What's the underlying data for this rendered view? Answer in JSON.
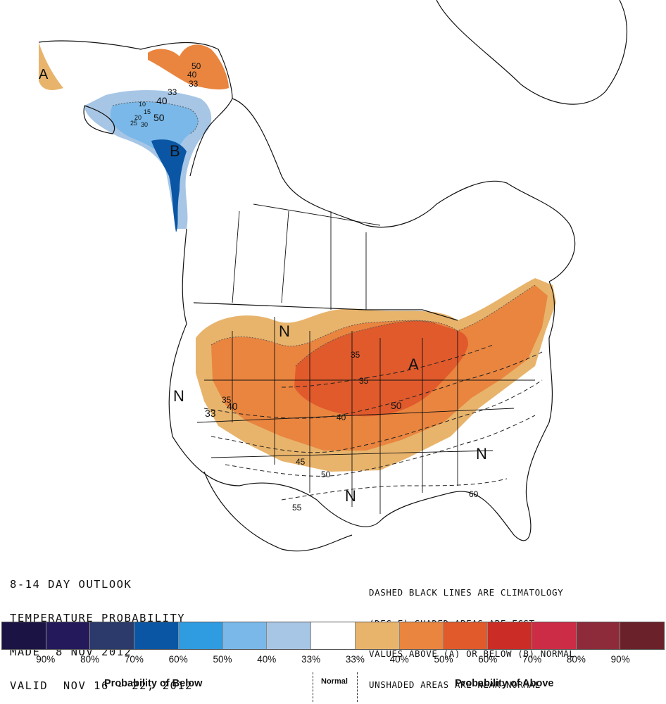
{
  "title": {
    "line1": "8-14 DAY OUTLOOK",
    "line2": "TEMPERATURE PROBABILITY",
    "line3": "MADE  8 NOV 2012",
    "line4": "VALID  NOV 16 - 22, 2012"
  },
  "note": {
    "line1": "DASHED BLACK LINES ARE CLIMATOLOGY",
    "line2": "(DEG F) SHADED AREAS ARE FCST",
    "line3": "VALUES ABOVE (A) OR BELOW (B) NORMAL",
    "line4": "UNSHADED AREAS ARE NEAR-NORMAL"
  },
  "map_labels": {
    "above": "A",
    "below": "B",
    "normal": "N",
    "contours": [
      "50",
      "40",
      "33",
      "40",
      "50",
      "33",
      "35",
      "35",
      "40",
      "33",
      "45",
      "50",
      "55",
      "60",
      "40",
      "50",
      "10",
      "15",
      "20",
      "25",
      "30",
      "35"
    ]
  },
  "legend": {
    "colors": [
      "#1c1345",
      "#24195a",
      "#2b3a6b",
      "#0a56a4",
      "#2f9be0",
      "#79b8e8",
      "#a7c6e6",
      "#ffffff",
      "#e8b46c",
      "#e9853f",
      "#e05a2c",
      "#cb2c26",
      "#cc2c46",
      "#8d2b3a",
      "#6b2129"
    ],
    "ticks": [
      "90%",
      "80%",
      "70%",
      "60%",
      "50%",
      "40%",
      "33%",
      "33%",
      "40%",
      "50%",
      "60%",
      "70%",
      "80%",
      "90%"
    ],
    "below_caption": "Probability of Below",
    "normal_caption": "Normal",
    "above_caption": "Probability of Above"
  }
}
